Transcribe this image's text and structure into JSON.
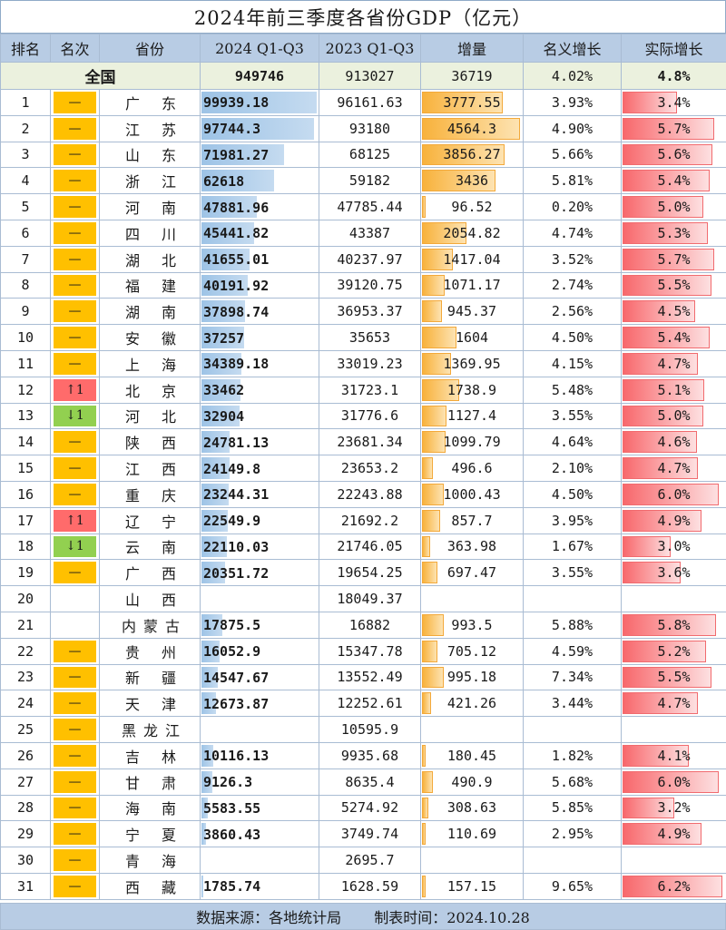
{
  "title": "2024年前三季度各省份GDP（亿元）",
  "headers": {
    "rank": "排名",
    "rank_change": "名次",
    "province": "省份",
    "gdp2024": "2024 Q1-Q3",
    "gdp2023": "2023 Q1-Q3",
    "increase": "增量",
    "nominal": "名义增长",
    "real": "实际增长"
  },
  "national": {
    "label": "全国",
    "gdp2024": "949746",
    "gdp2023": "913027",
    "increase": "36719",
    "nominal": "4.02%",
    "real": "4.8%"
  },
  "rows": [
    {
      "rank": "1",
      "change": "same",
      "change_text": "—",
      "province": "广东",
      "gdp2024": "99939.18",
      "gdp2023": "96161.63",
      "increase": "3777.55",
      "nominal": "3.93%",
      "real": "3.4%",
      "gdp_val": 99939.18,
      "inc_val": 3777.55,
      "real_val": 3.4
    },
    {
      "rank": "2",
      "change": "same",
      "change_text": "—",
      "province": "江苏",
      "gdp2024": "97744.3",
      "gdp2023": "93180",
      "increase": "4564.3",
      "nominal": "4.90%",
      "real": "5.7%",
      "gdp_val": 97744.3,
      "inc_val": 4564.3,
      "real_val": 5.7
    },
    {
      "rank": "3",
      "change": "same",
      "change_text": "—",
      "province": "山东",
      "gdp2024": "71981.27",
      "gdp2023": "68125",
      "increase": "3856.27",
      "nominal": "5.66%",
      "real": "5.6%",
      "gdp_val": 71981.27,
      "inc_val": 3856.27,
      "real_val": 5.6
    },
    {
      "rank": "4",
      "change": "same",
      "change_text": "—",
      "province": "浙江",
      "gdp2024": "62618",
      "gdp2023": "59182",
      "increase": "3436",
      "nominal": "5.81%",
      "real": "5.4%",
      "gdp_val": 62618,
      "inc_val": 3436,
      "real_val": 5.4
    },
    {
      "rank": "5",
      "change": "same",
      "change_text": "—",
      "province": "河南",
      "gdp2024": "47881.96",
      "gdp2023": "47785.44",
      "increase": "96.52",
      "nominal": "0.20%",
      "real": "5.0%",
      "gdp_val": 47881.96,
      "inc_val": 96.52,
      "real_val": 5.0
    },
    {
      "rank": "6",
      "change": "same",
      "change_text": "—",
      "province": "四川",
      "gdp2024": "45441.82",
      "gdp2023": "43387",
      "increase": "2054.82",
      "nominal": "4.74%",
      "real": "5.3%",
      "gdp_val": 45441.82,
      "inc_val": 2054.82,
      "real_val": 5.3
    },
    {
      "rank": "7",
      "change": "same",
      "change_text": "—",
      "province": "湖北",
      "gdp2024": "41655.01",
      "gdp2023": "40237.97",
      "increase": "1417.04",
      "nominal": "3.52%",
      "real": "5.7%",
      "gdp_val": 41655.01,
      "inc_val": 1417.04,
      "real_val": 5.7
    },
    {
      "rank": "8",
      "change": "same",
      "change_text": "—",
      "province": "福建",
      "gdp2024": "40191.92",
      "gdp2023": "39120.75",
      "increase": "1071.17",
      "nominal": "2.74%",
      "real": "5.5%",
      "gdp_val": 40191.92,
      "inc_val": 1071.17,
      "real_val": 5.5
    },
    {
      "rank": "9",
      "change": "same",
      "change_text": "—",
      "province": "湖南",
      "gdp2024": "37898.74",
      "gdp2023": "36953.37",
      "increase": "945.37",
      "nominal": "2.56%",
      "real": "4.5%",
      "gdp_val": 37898.74,
      "inc_val": 945.37,
      "real_val": 4.5
    },
    {
      "rank": "10",
      "change": "same",
      "change_text": "—",
      "province": "安徽",
      "gdp2024": "37257",
      "gdp2023": "35653",
      "increase": "1604",
      "nominal": "4.50%",
      "real": "5.4%",
      "gdp_val": 37257,
      "inc_val": 1604,
      "real_val": 5.4
    },
    {
      "rank": "11",
      "change": "same",
      "change_text": "—",
      "province": "上海",
      "gdp2024": "34389.18",
      "gdp2023": "33019.23",
      "increase": "1369.95",
      "nominal": "4.15%",
      "real": "4.7%",
      "gdp_val": 34389.18,
      "inc_val": 1369.95,
      "real_val": 4.7
    },
    {
      "rank": "12",
      "change": "up",
      "change_text": "↑1",
      "province": "北京",
      "gdp2024": "33462",
      "gdp2023": "31723.1",
      "increase": "1738.9",
      "nominal": "5.48%",
      "real": "5.1%",
      "gdp_val": 33462,
      "inc_val": 1738.9,
      "real_val": 5.1
    },
    {
      "rank": "13",
      "change": "down",
      "change_text": "↓1",
      "province": "河北",
      "gdp2024": "32904",
      "gdp2023": "31776.6",
      "increase": "1127.4",
      "nominal": "3.55%",
      "real": "5.0%",
      "gdp_val": 32904,
      "inc_val": 1127.4,
      "real_val": 5.0
    },
    {
      "rank": "14",
      "change": "same",
      "change_text": "—",
      "province": "陕西",
      "gdp2024": "24781.13",
      "gdp2023": "23681.34",
      "increase": "1099.79",
      "nominal": "4.64%",
      "real": "4.6%",
      "gdp_val": 24781.13,
      "inc_val": 1099.79,
      "real_val": 4.6
    },
    {
      "rank": "15",
      "change": "same",
      "change_text": "—",
      "province": "江西",
      "gdp2024": "24149.8",
      "gdp2023": "23653.2",
      "increase": "496.6",
      "nominal": "2.10%",
      "real": "4.7%",
      "gdp_val": 24149.8,
      "inc_val": 496.6,
      "real_val": 4.7
    },
    {
      "rank": "16",
      "change": "same",
      "change_text": "—",
      "province": "重庆",
      "gdp2024": "23244.31",
      "gdp2023": "22243.88",
      "increase": "1000.43",
      "nominal": "4.50%",
      "real": "6.0%",
      "gdp_val": 23244.31,
      "inc_val": 1000.43,
      "real_val": 6.0
    },
    {
      "rank": "17",
      "change": "up",
      "change_text": "↑1",
      "province": "辽宁",
      "gdp2024": "22549.9",
      "gdp2023": "21692.2",
      "increase": "857.7",
      "nominal": "3.95%",
      "real": "4.9%",
      "gdp_val": 22549.9,
      "inc_val": 857.7,
      "real_val": 4.9
    },
    {
      "rank": "18",
      "change": "down",
      "change_text": "↓1",
      "province": "云南",
      "gdp2024": "22110.03",
      "gdp2023": "21746.05",
      "increase": "363.98",
      "nominal": "1.67%",
      "real": "3.0%",
      "gdp_val": 22110.03,
      "inc_val": 363.98,
      "real_val": 3.0
    },
    {
      "rank": "19",
      "change": "same",
      "change_text": "—",
      "province": "广西",
      "gdp2024": "20351.72",
      "gdp2023": "19654.25",
      "increase": "697.47",
      "nominal": "3.55%",
      "real": "3.6%",
      "gdp_val": 20351.72,
      "inc_val": 697.47,
      "real_val": 3.6
    },
    {
      "rank": "20",
      "change": "none",
      "change_text": "",
      "province": "山西",
      "gdp2024": "",
      "gdp2023": "18049.37",
      "increase": "",
      "nominal": "",
      "real": "",
      "gdp_val": 0,
      "inc_val": 0,
      "real_val": 0
    },
    {
      "rank": "21",
      "change": "none",
      "change_text": "",
      "province": "内蒙古",
      "gdp2024": "17875.5",
      "gdp2023": "16882",
      "increase": "993.5",
      "nominal": "5.88%",
      "real": "5.8%",
      "gdp_val": 17875.5,
      "inc_val": 993.5,
      "real_val": 5.8
    },
    {
      "rank": "22",
      "change": "same",
      "change_text": "—",
      "province": "贵州",
      "gdp2024": "16052.9",
      "gdp2023": "15347.78",
      "increase": "705.12",
      "nominal": "4.59%",
      "real": "5.2%",
      "gdp_val": 16052.9,
      "inc_val": 705.12,
      "real_val": 5.2
    },
    {
      "rank": "23",
      "change": "same",
      "change_text": "—",
      "province": "新疆",
      "gdp2024": "14547.67",
      "gdp2023": "13552.49",
      "increase": "995.18",
      "nominal": "7.34%",
      "real": "5.5%",
      "gdp_val": 14547.67,
      "inc_val": 995.18,
      "real_val": 5.5
    },
    {
      "rank": "24",
      "change": "same",
      "change_text": "—",
      "province": "天津",
      "gdp2024": "12673.87",
      "gdp2023": "12252.61",
      "increase": "421.26",
      "nominal": "3.44%",
      "real": "4.7%",
      "gdp_val": 12673.87,
      "inc_val": 421.26,
      "real_val": 4.7
    },
    {
      "rank": "25",
      "change": "same",
      "change_text": "—",
      "province": "黑龙江",
      "gdp2024": "",
      "gdp2023": "10595.9",
      "increase": "",
      "nominal": "",
      "real": "",
      "gdp_val": 0,
      "inc_val": 0,
      "real_val": 0
    },
    {
      "rank": "26",
      "change": "same",
      "change_text": "—",
      "province": "吉林",
      "gdp2024": "10116.13",
      "gdp2023": "9935.68",
      "increase": "180.45",
      "nominal": "1.82%",
      "real": "4.1%",
      "gdp_val": 10116.13,
      "inc_val": 180.45,
      "real_val": 4.1
    },
    {
      "rank": "27",
      "change": "same",
      "change_text": "—",
      "province": "甘肃",
      "gdp2024": "9126.3",
      "gdp2023": "8635.4",
      "increase": "490.9",
      "nominal": "5.68%",
      "real": "6.0%",
      "gdp_val": 9126.3,
      "inc_val": 490.9,
      "real_val": 6.0
    },
    {
      "rank": "28",
      "change": "same",
      "change_text": "—",
      "province": "海南",
      "gdp2024": "5583.55",
      "gdp2023": "5274.92",
      "increase": "308.63",
      "nominal": "5.85%",
      "real": "3.2%",
      "gdp_val": 5583.55,
      "inc_val": 308.63,
      "real_val": 3.2
    },
    {
      "rank": "29",
      "change": "same",
      "change_text": "—",
      "province": "宁夏",
      "gdp2024": "3860.43",
      "gdp2023": "3749.74",
      "increase": "110.69",
      "nominal": "2.95%",
      "real": "4.9%",
      "gdp_val": 3860.43,
      "inc_val": 110.69,
      "real_val": 4.9
    },
    {
      "rank": "30",
      "change": "same",
      "change_text": "—",
      "province": "青海",
      "gdp2024": "",
      "gdp2023": "2695.7",
      "increase": "",
      "nominal": "",
      "real": "",
      "gdp_val": 0,
      "inc_val": 0,
      "real_val": 0
    },
    {
      "rank": "31",
      "change": "same",
      "change_text": "—",
      "province": "西藏",
      "gdp2024": "1785.74",
      "gdp2023": "1628.59",
      "increase": "157.15",
      "nominal": "9.65%",
      "real": "6.2%",
      "gdp_val": 1785.74,
      "inc_val": 157.15,
      "real_val": 6.2
    }
  ],
  "scales": {
    "gdp_max": 99939.18,
    "inc_max": 4564.3,
    "real_max": 6.2
  },
  "footer": {
    "source": "数据来源：各地统计局",
    "date": "制表时间：2024.10.28"
  },
  "colors": {
    "header_bg": "#b8cce4",
    "national_bg": "#ebf1de",
    "rank_same": "#ffc000",
    "rank_up": "#ff6b6b",
    "rank_down": "#92d050",
    "gdp_bar": "#9dc3e6",
    "increase_bar": "#f8b23c",
    "real_bar": "#f8686c"
  }
}
